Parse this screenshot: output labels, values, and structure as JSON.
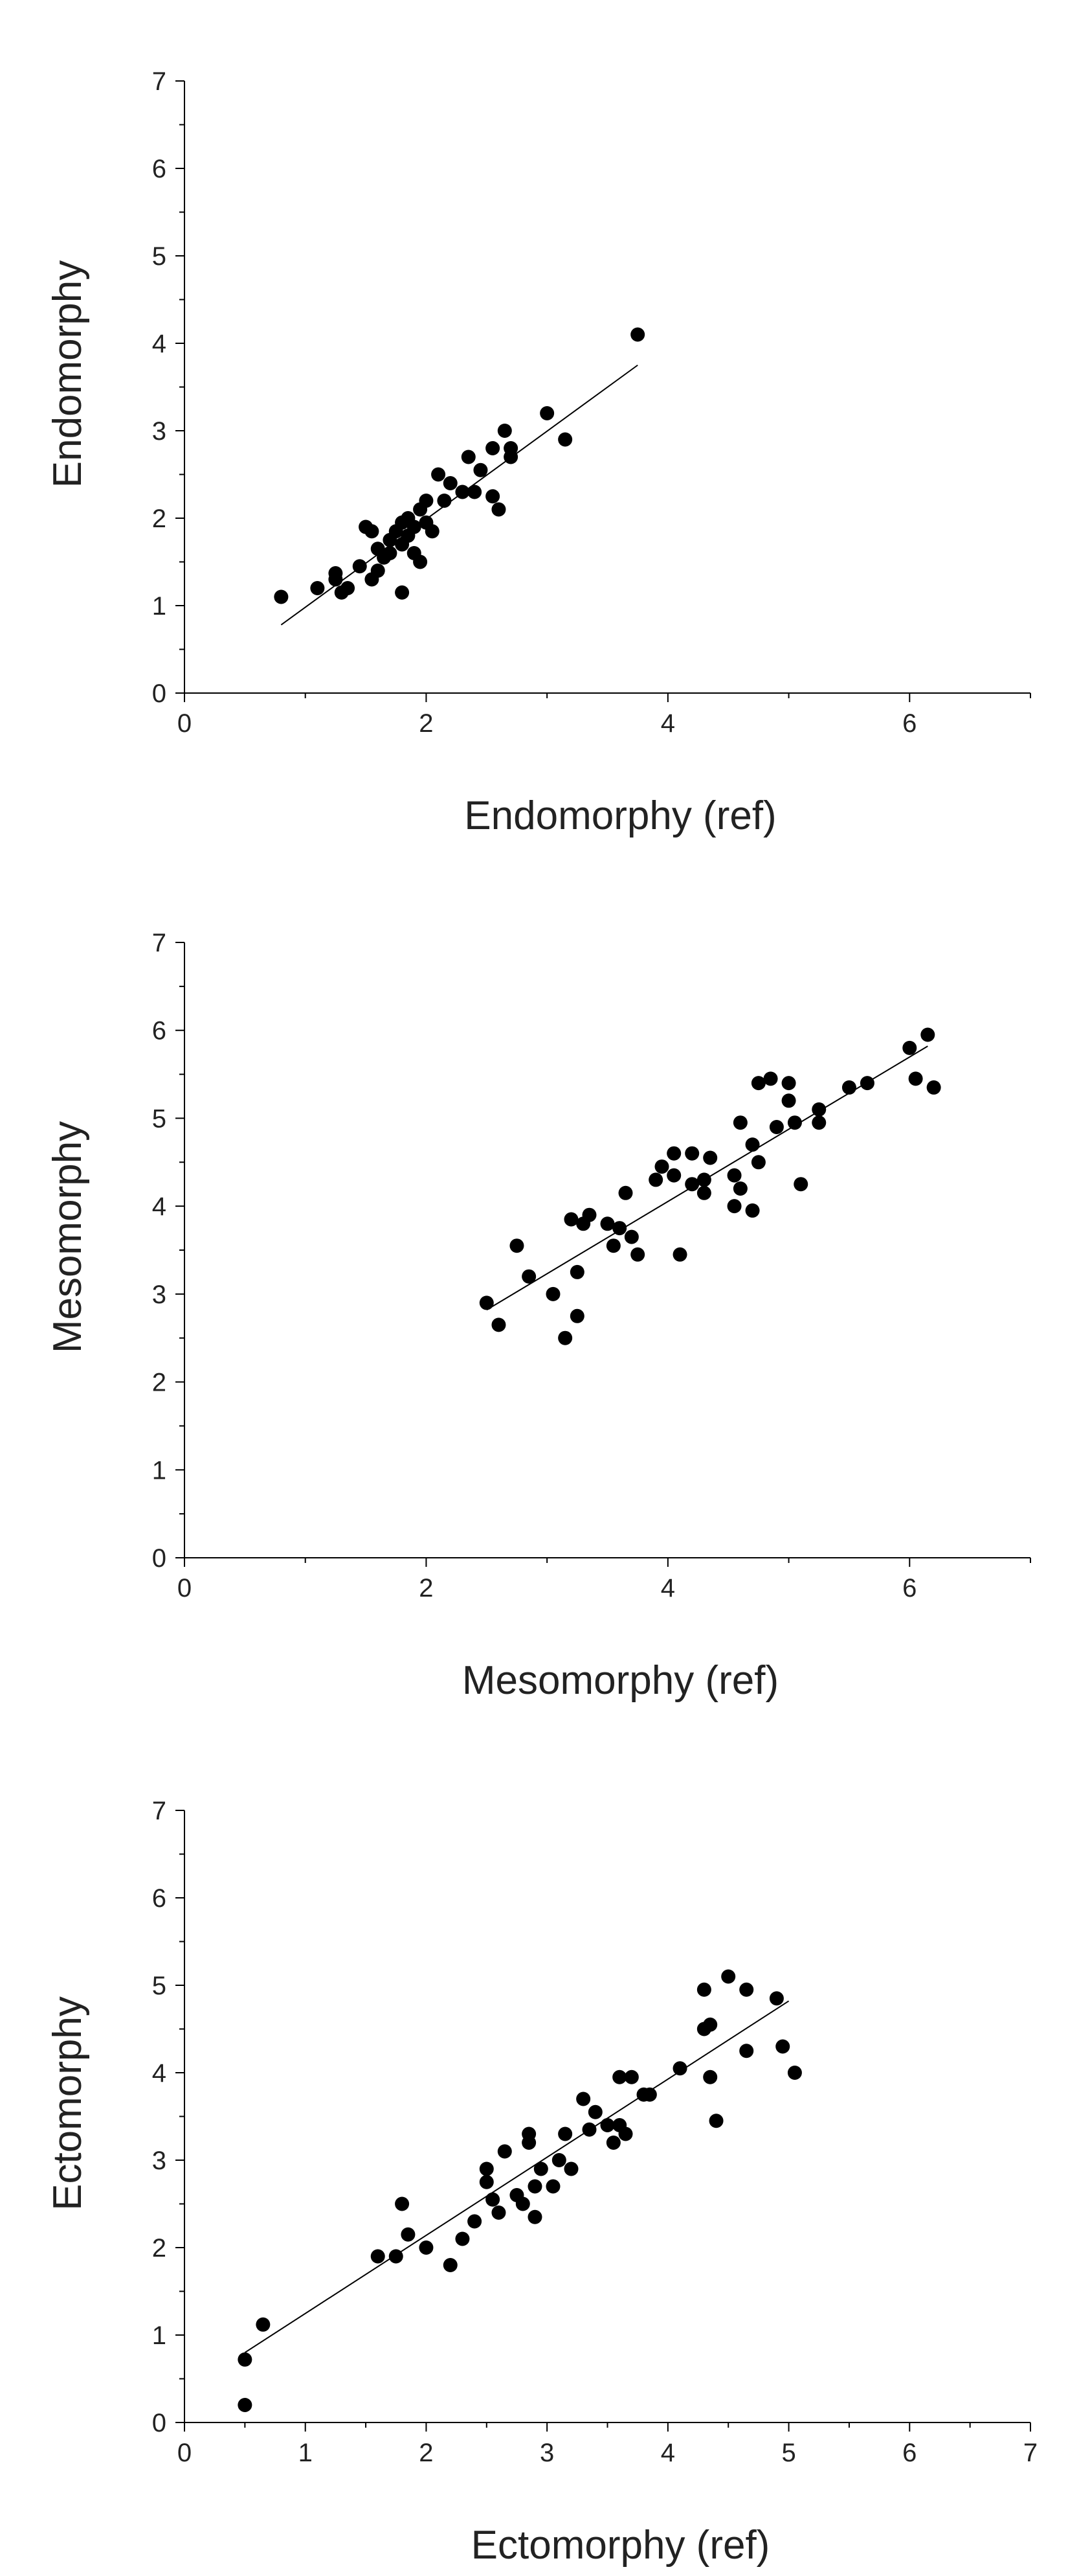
{
  "chart_data": [
    {
      "type": "scatter",
      "title": "",
      "xlabel": "Endomorphy (ref)",
      "ylabel": "Endomorphy",
      "xlim": [
        0,
        7
      ],
      "ylim": [
        0,
        7
      ],
      "xticks": [
        0,
        2,
        4,
        6
      ],
      "yticks": [
        0,
        1,
        2,
        3,
        4,
        5,
        6,
        7
      ],
      "grid": false,
      "fit_line": {
        "x": [
          0.8,
          3.75
        ],
        "y": [
          0.78,
          3.75
        ]
      },
      "points": [
        [
          0.8,
          1.1
        ],
        [
          1.1,
          1.2
        ],
        [
          1.25,
          1.3
        ],
        [
          1.25,
          1.37
        ],
        [
          1.3,
          1.15
        ],
        [
          1.35,
          1.2
        ],
        [
          1.45,
          1.45
        ],
        [
          1.5,
          1.9
        ],
        [
          1.55,
          1.3
        ],
        [
          1.55,
          1.85
        ],
        [
          1.6,
          1.4
        ],
        [
          1.6,
          1.65
        ],
        [
          1.65,
          1.55
        ],
        [
          1.7,
          1.75
        ],
        [
          1.7,
          1.6
        ],
        [
          1.75,
          1.85
        ],
        [
          1.8,
          1.7
        ],
        [
          1.8,
          1.95
        ],
        [
          1.8,
          1.15
        ],
        [
          1.85,
          2.0
        ],
        [
          1.85,
          1.8
        ],
        [
          1.9,
          1.9
        ],
        [
          1.9,
          1.6
        ],
        [
          1.95,
          1.5
        ],
        [
          1.95,
          2.1
        ],
        [
          2.0,
          2.2
        ],
        [
          2.0,
          1.95
        ],
        [
          2.05,
          1.85
        ],
        [
          2.1,
          2.5
        ],
        [
          2.15,
          2.2
        ],
        [
          2.2,
          2.4
        ],
        [
          2.3,
          2.3
        ],
        [
          2.35,
          2.7
        ],
        [
          2.4,
          2.3
        ],
        [
          2.45,
          2.55
        ],
        [
          2.55,
          2.25
        ],
        [
          2.55,
          2.8
        ],
        [
          2.6,
          2.1
        ],
        [
          2.65,
          3.0
        ],
        [
          2.7,
          2.7
        ],
        [
          2.7,
          2.8
        ],
        [
          3.0,
          3.2
        ],
        [
          3.15,
          2.9
        ],
        [
          3.75,
          4.1
        ]
      ]
    },
    {
      "type": "scatter",
      "title": "",
      "xlabel": "Mesomorphy (ref)",
      "ylabel": "Mesomorphy",
      "xlim": [
        0,
        7
      ],
      "ylim": [
        0,
        7
      ],
      "xticks": [
        0,
        2,
        4,
        6
      ],
      "yticks": [
        0,
        1,
        2,
        3,
        4,
        5,
        6,
        7
      ],
      "grid": false,
      "fit_line": {
        "x": [
          2.5,
          6.15
        ],
        "y": [
          2.82,
          5.82
        ]
      },
      "points": [
        [
          2.5,
          2.9
        ],
        [
          2.6,
          2.65
        ],
        [
          2.75,
          3.55
        ],
        [
          2.85,
          3.2
        ],
        [
          3.05,
          3.0
        ],
        [
          3.15,
          2.5
        ],
        [
          3.2,
          3.85
        ],
        [
          3.25,
          3.25
        ],
        [
          3.25,
          2.75
        ],
        [
          3.3,
          3.8
        ],
        [
          3.35,
          3.9
        ],
        [
          3.5,
          3.8
        ],
        [
          3.55,
          3.55
        ],
        [
          3.6,
          3.75
        ],
        [
          3.65,
          4.15
        ],
        [
          3.7,
          3.65
        ],
        [
          3.75,
          3.45
        ],
        [
          4.1,
          3.45
        ],
        [
          3.9,
          4.3
        ],
        [
          3.95,
          4.45
        ],
        [
          4.05,
          4.35
        ],
        [
          4.05,
          4.6
        ],
        [
          4.2,
          4.6
        ],
        [
          4.2,
          4.25
        ],
        [
          4.3,
          4.3
        ],
        [
          4.3,
          4.15
        ],
        [
          4.35,
          4.55
        ],
        [
          4.55,
          4.35
        ],
        [
          4.55,
          4.0
        ],
        [
          4.6,
          4.95
        ],
        [
          4.6,
          4.2
        ],
        [
          4.7,
          3.95
        ],
        [
          4.7,
          4.7
        ],
        [
          4.75,
          4.5
        ],
        [
          4.75,
          5.4
        ],
        [
          4.85,
          5.45
        ],
        [
          4.9,
          4.9
        ],
        [
          5.0,
          5.2
        ],
        [
          5.0,
          5.4
        ],
        [
          5.05,
          4.95
        ],
        [
          5.1,
          4.25
        ],
        [
          5.25,
          4.95
        ],
        [
          5.25,
          5.1
        ],
        [
          5.5,
          5.35
        ],
        [
          5.65,
          5.4
        ],
        [
          6.0,
          5.8
        ],
        [
          6.05,
          5.45
        ],
        [
          6.15,
          5.95
        ],
        [
          6.2,
          5.35
        ]
      ]
    },
    {
      "type": "scatter",
      "title": "",
      "xlabel": "Ectomorphy (ref)",
      "ylabel": "Ectomorphy",
      "xlim": [
        0,
        7
      ],
      "ylim": [
        0,
        7
      ],
      "xticks": [
        0,
        1,
        2,
        3,
        4,
        5,
        6,
        7
      ],
      "yticks": [
        0,
        1,
        2,
        3,
        4,
        5,
        6,
        7
      ],
      "grid": false,
      "fit_line": {
        "x": [
          0.5,
          5.0
        ],
        "y": [
          0.8,
          4.82
        ]
      },
      "points": [
        [
          0.5,
          0.2
        ],
        [
          0.5,
          0.72
        ],
        [
          0.65,
          1.12
        ],
        [
          1.6,
          1.9
        ],
        [
          1.75,
          1.9
        ],
        [
          1.8,
          2.5
        ],
        [
          1.85,
          2.15
        ],
        [
          2.0,
          2.0
        ],
        [
          2.2,
          1.8
        ],
        [
          2.3,
          2.1
        ],
        [
          2.4,
          2.3
        ],
        [
          2.5,
          2.9
        ],
        [
          2.5,
          2.75
        ],
        [
          2.55,
          2.55
        ],
        [
          2.6,
          2.4
        ],
        [
          2.65,
          3.1
        ],
        [
          2.75,
          2.6
        ],
        [
          2.8,
          2.5
        ],
        [
          2.85,
          3.3
        ],
        [
          2.85,
          3.2
        ],
        [
          2.9,
          2.7
        ],
        [
          2.9,
          2.35
        ],
        [
          2.95,
          2.9
        ],
        [
          3.05,
          2.7
        ],
        [
          3.1,
          3.0
        ],
        [
          3.15,
          3.3
        ],
        [
          3.2,
          2.9
        ],
        [
          3.3,
          3.7
        ],
        [
          3.35,
          3.35
        ],
        [
          3.4,
          3.55
        ],
        [
          3.5,
          3.4
        ],
        [
          3.55,
          3.2
        ],
        [
          3.6,
          3.4
        ],
        [
          3.6,
          3.95
        ],
        [
          3.65,
          3.3
        ],
        [
          3.7,
          3.95
        ],
        [
          3.8,
          3.75
        ],
        [
          3.85,
          3.75
        ],
        [
          4.1,
          4.05
        ],
        [
          4.3,
          4.95
        ],
        [
          4.3,
          4.5
        ],
        [
          4.35,
          3.95
        ],
        [
          4.35,
          4.55
        ],
        [
          4.4,
          3.45
        ],
        [
          4.5,
          5.1
        ],
        [
          4.65,
          4.25
        ],
        [
          4.65,
          4.95
        ],
        [
          4.9,
          4.85
        ],
        [
          4.95,
          4.3
        ],
        [
          5.05,
          4.0
        ]
      ]
    }
  ]
}
